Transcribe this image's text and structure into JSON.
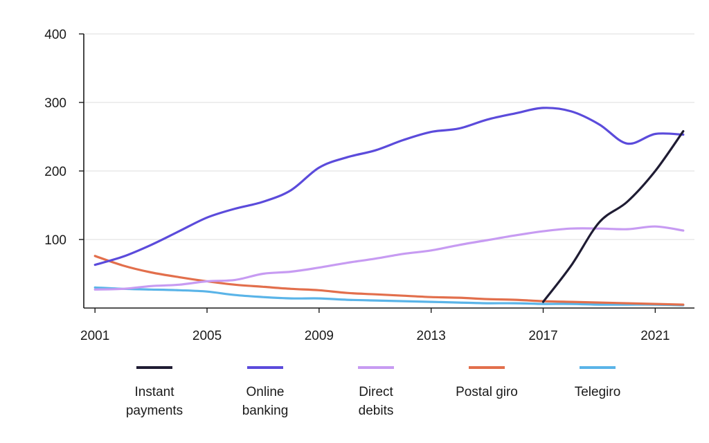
{
  "chart_data": {
    "type": "line",
    "title": "",
    "xlabel": "",
    "ylabel": "",
    "xlim": [
      2000.6,
      2022.4
    ],
    "ylim": [
      0,
      400
    ],
    "x_ticks": [
      2001,
      2005,
      2009,
      2013,
      2017,
      2021
    ],
    "y_ticks": [
      100,
      200,
      300,
      400
    ],
    "grid": "horizontal",
    "legend_position": "bottom",
    "x": [
      2001,
      2002,
      2003,
      2004,
      2005,
      2006,
      2007,
      2008,
      2009,
      2010,
      2011,
      2012,
      2013,
      2014,
      2015,
      2016,
      2017,
      2018,
      2019,
      2020,
      2021,
      2022
    ],
    "series": [
      {
        "name": "Instant payments",
        "color": "#1f1c33",
        "x": [
          2017,
          2018,
          2019,
          2020,
          2021,
          2022
        ],
        "values": [
          9,
          62,
          125,
          155,
          200,
          258
        ]
      },
      {
        "name": "Online banking",
        "color": "#5b4bdb",
        "values": [
          63,
          75,
          92,
          112,
          132,
          145,
          155,
          172,
          205,
          220,
          230,
          245,
          257,
          262,
          275,
          284,
          292,
          287,
          268,
          240,
          254,
          253
        ]
      },
      {
        "name": "Direct debits",
        "color": "#c79bf2",
        "values": [
          27,
          28,
          32,
          34,
          39,
          41,
          50,
          53,
          59,
          66,
          72,
          79,
          84,
          92,
          99,
          106,
          112,
          116,
          116,
          115,
          119,
          113
        ]
      },
      {
        "name": "Postal giro",
        "color": "#e26f4c",
        "values": [
          76,
          62,
          52,
          45,
          39,
          34,
          31,
          28,
          26,
          22,
          20,
          18,
          16,
          15,
          13,
          12,
          10,
          9,
          8,
          7,
          6,
          5
        ]
      },
      {
        "name": "Telegiro",
        "color": "#5ab4e8",
        "values": [
          30,
          28,
          27,
          26,
          24,
          19,
          16,
          14,
          14,
          12,
          11,
          10,
          9,
          8,
          7,
          7,
          6,
          6,
          5,
          5,
          5,
          4
        ]
      }
    ],
    "legend_entries": [
      {
        "line1": "Instant",
        "line2": "payments"
      },
      {
        "line1": "Online",
        "line2": "banking"
      },
      {
        "line1": "Direct",
        "line2": "debits"
      },
      {
        "line1": "Postal giro",
        "line2": ""
      },
      {
        "line1": "Telegiro",
        "line2": ""
      }
    ]
  }
}
